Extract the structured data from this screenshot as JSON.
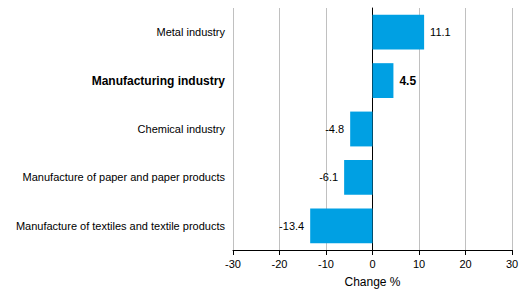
{
  "chart_data": {
    "type": "bar",
    "orientation": "horizontal",
    "categories": [
      "Metal industry",
      "Manufacturing industry",
      "Chemical industry",
      "Manufacture of paper and paper products",
      "Manufacture of textiles and textile products"
    ],
    "values": [
      11.1,
      4.5,
      -4.8,
      -6.1,
      -13.4
    ],
    "color": "#00a0e3",
    "xlabel": "Change %",
    "xlim": [
      -30,
      30
    ],
    "xticks": [
      -30,
      -20,
      -10,
      0,
      10,
      20,
      30
    ],
    "grid": true,
    "data_labels": true
  }
}
